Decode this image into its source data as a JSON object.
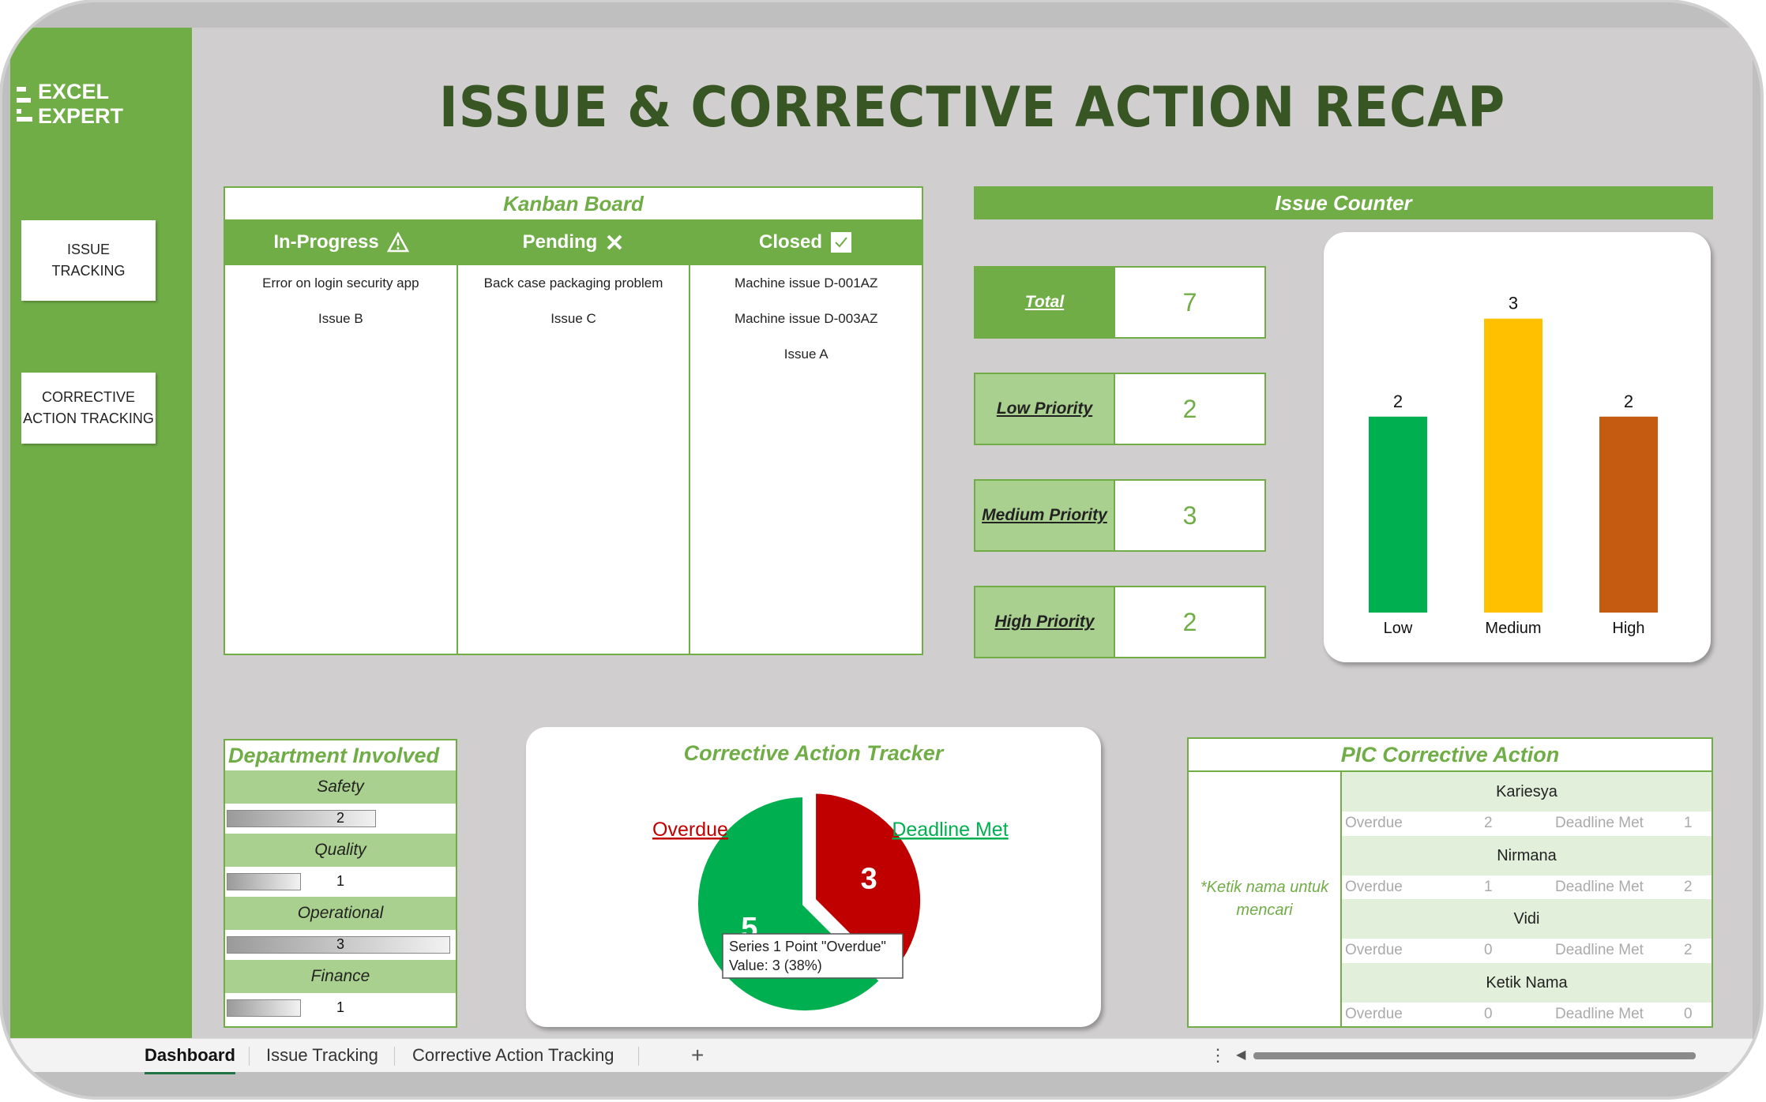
{
  "brand": {
    "name": "EXCEL EXPERT"
  },
  "nav": [
    {
      "label_line1": "ISSUE",
      "label_line2": "TRACKING"
    },
    {
      "label_line1": "CORRECTIVE",
      "label_line2": "ACTION TRACKING"
    }
  ],
  "title": "ISSUE & CORRECTIVE ACTION RECAP",
  "kanban": {
    "title": "Kanban Board",
    "columns": [
      {
        "label": "In-Progress",
        "icon": "warning-icon",
        "items": [
          "Error on login security app",
          "Issue B"
        ]
      },
      {
        "label": "Pending",
        "icon": "x-icon",
        "items": [
          "Back case packaging problem",
          "Issue C"
        ]
      },
      {
        "label": "Closed",
        "icon": "checkbox-icon",
        "items": [
          "Machine issue D-001AZ",
          "Machine issue D-003AZ",
          "Issue A"
        ]
      }
    ]
  },
  "counter": {
    "title": "Issue Counter",
    "rows": [
      {
        "label": "Total",
        "value": "7"
      },
      {
        "label": "Low Priority",
        "value": "2"
      },
      {
        "label": "Medium Priority",
        "value": "3"
      },
      {
        "label": "High Priority",
        "value": "2"
      }
    ]
  },
  "chart_data": [
    {
      "type": "bar",
      "categories": [
        "Low",
        "Medium",
        "High"
      ],
      "values": [
        2,
        3,
        2
      ],
      "colors": [
        "#00b050",
        "#ffc000",
        "#c55a11"
      ],
      "ylim": [
        0,
        3.4
      ],
      "grid": false
    },
    {
      "type": "pie",
      "title": "Corrective Action Tracker",
      "categories": [
        "Overdue",
        "Deadline Met"
      ],
      "values": [
        3,
        5
      ],
      "colors": [
        "#c00000",
        "#00b050"
      ]
    }
  ],
  "departments": {
    "title": "Department Involved",
    "max": 3,
    "items": [
      {
        "name": "Safety",
        "value": 2
      },
      {
        "name": "Quality",
        "value": 1
      },
      {
        "name": "Operational",
        "value": 3
      },
      {
        "name": "Finance",
        "value": 1
      }
    ]
  },
  "tracker": {
    "overdue_label": "Overdue",
    "met_label": "Deadline Met",
    "tooltip_line1": "Series 1 Point \"Overdue\"",
    "tooltip_line2": "Value: 3 (38%)"
  },
  "pic": {
    "title": "PIC Corrective Action",
    "search_hint": "*Ketik nama untuk mencari",
    "overdue_label": "Overdue",
    "met_label": "Deadline Met",
    "people": [
      {
        "name": "Kariesya",
        "overdue": "2",
        "met": "1"
      },
      {
        "name": "Nirmana",
        "overdue": "1",
        "met": "2"
      },
      {
        "name": "Vidi",
        "overdue": "0",
        "met": "2"
      },
      {
        "name": "Ketik Nama",
        "overdue": "0",
        "met": "0"
      }
    ]
  },
  "tabs": [
    "Dashboard",
    "Issue Tracking",
    "Corrective Action Tracking"
  ],
  "add_sheet": "+",
  "more": "⋮",
  "scroll_left": "◀"
}
